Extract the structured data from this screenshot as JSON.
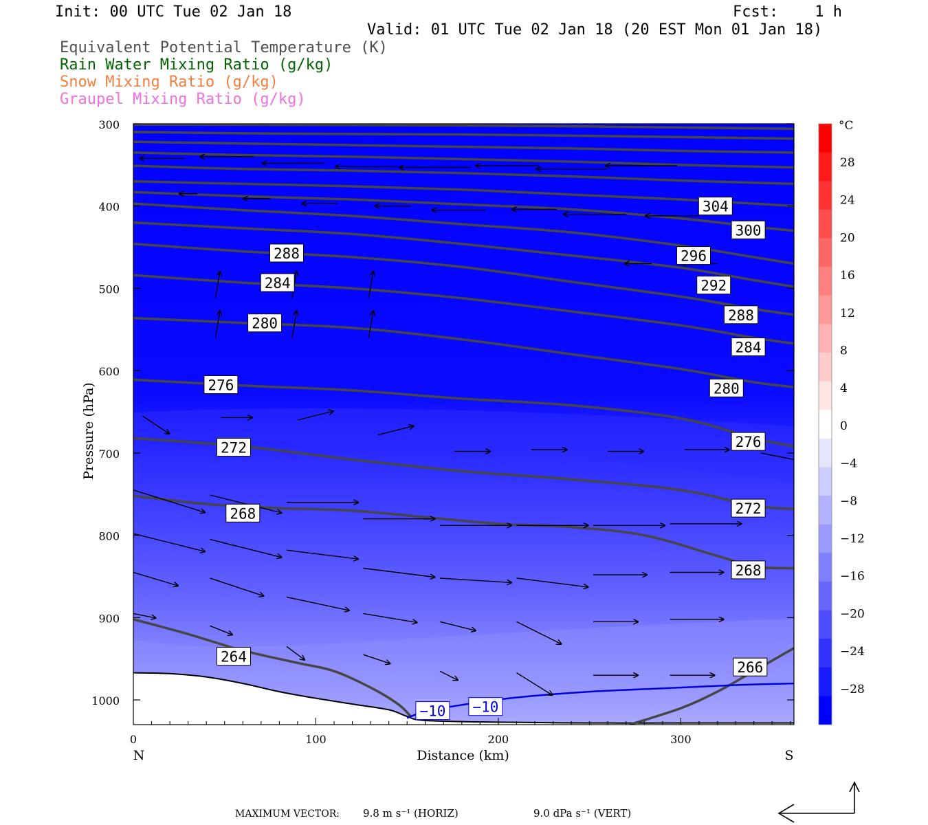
{
  "header": {
    "init": "Init: 00 UTC Tue 02 Jan 18",
    "fcst": "Fcst:    1 h",
    "valid": "Valid: 01 UTC Tue 02 Jan 18 (20 EST Mon 01 Jan 18)"
  },
  "legend": [
    {
      "label": "Equivalent Potential Temperature (K)",
      "color": "#505050"
    },
    {
      "label": "Rain Water Mixing Ratio (g/kg)",
      "color": "#006400"
    },
    {
      "label": "Snow Mixing Ratio (g/kg)",
      "color": "#f08040"
    },
    {
      "label": "Graupel Mixing Ratio (g/kg)",
      "color": "#f070e0"
    }
  ],
  "footer": {
    "max_vector_label": "MAXIMUM VECTOR:",
    "horiz": "9.8 m s⁻¹ (HORIZ)",
    "vert": "9.0 dPa s⁻¹ (VERT)"
  },
  "chart_data": {
    "type": "heatmap",
    "xlabel": "Distance (km)",
    "ylabel": "Pressure (hPa)",
    "x_ticks": [
      0,
      100,
      200,
      300
    ],
    "y_ticks": [
      300,
      400,
      500,
      600,
      700,
      800,
      900,
      1000
    ],
    "xlim": [
      0,
      362
    ],
    "ylim": [
      300,
      1030
    ],
    "x_end_labels": {
      "left": "N",
      "right": "S"
    },
    "colorbar": {
      "unit": "°C",
      "ticks": [
        28,
        24,
        20,
        16,
        12,
        8,
        4,
        0,
        -4,
        -8,
        -12,
        -16,
        -20,
        -24,
        -28
      ],
      "tick_labels": [
        "28",
        "24",
        "20",
        "16",
        "12",
        "8",
        "4",
        "0",
        "−4",
        "−8",
        "−12",
        "−16",
        "−20",
        "−24",
        "−28"
      ],
      "colors": [
        "#ff0000",
        "#ff1a1a",
        "#ff3333",
        "#ff4d4d",
        "#ff6666",
        "#ff8080",
        "#ff9999",
        "#ffb3b3",
        "#ffcccc",
        "#ffe6e6",
        "#ffffff",
        "#e6e6ff",
        "#ccccff",
        "#b3b3ff",
        "#9999ff",
        "#8080ff",
        "#6666ff",
        "#4d4dff",
        "#3333ff",
        "#1a1aff",
        "#0000ff"
      ]
    },
    "theta_e_contours": [
      {
        "value": 264,
        "label": "264",
        "points": [
          [
            0,
            902
          ],
          [
            30,
            920
          ],
          [
            60,
            940
          ],
          [
            90,
            955
          ],
          [
            110,
            965
          ],
          [
            130,
            985
          ],
          [
            145,
            1005
          ],
          [
            152,
            1020
          ]
        ]
      },
      {
        "value": 266,
        "label": "266",
        "points": [
          [
            272,
            1030
          ],
          [
            300,
            1010
          ],
          [
            320,
            990
          ],
          [
            340,
            965
          ],
          [
            362,
            937
          ]
        ]
      },
      {
        "value": 268,
        "label": "268",
        "points": [
          [
            0,
            752
          ],
          [
            40,
            762
          ],
          [
            80,
            767
          ],
          [
            120,
            770
          ],
          [
            160,
            778
          ],
          [
            200,
            786
          ],
          [
            240,
            790
          ],
          [
            280,
            800
          ],
          [
            320,
            825
          ],
          [
            340,
            838
          ],
          [
            362,
            840
          ]
        ]
      },
      {
        "value": 272,
        "label": "272",
        "points": [
          [
            0,
            682
          ],
          [
            60,
            692
          ],
          [
            120,
            708
          ],
          [
            180,
            722
          ],
          [
            240,
            732
          ],
          [
            300,
            745
          ],
          [
            340,
            764
          ],
          [
            362,
            768
          ]
        ]
      },
      {
        "value": 276,
        "label": "276",
        "points": [
          [
            0,
            611
          ],
          [
            60,
            618
          ],
          [
            120,
            624
          ],
          [
            180,
            634
          ],
          [
            240,
            642
          ],
          [
            300,
            658
          ],
          [
            340,
            682
          ],
          [
            362,
            692
          ]
        ]
      },
      {
        "value": 280,
        "label": "280",
        "points": [
          [
            0,
            536
          ],
          [
            60,
            542
          ],
          [
            120,
            548
          ],
          [
            180,
            562
          ],
          [
            240,
            580
          ],
          [
            300,
            598
          ],
          [
            340,
            614
          ],
          [
            362,
            620
          ]
        ]
      },
      {
        "value": 284,
        "label": "284",
        "points": [
          [
            0,
            484
          ],
          [
            60,
            493
          ],
          [
            120,
            500
          ],
          [
            180,
            512
          ],
          [
            240,
            528
          ],
          [
            300,
            545
          ],
          [
            340,
            560
          ],
          [
            362,
            567
          ]
        ]
      },
      {
        "value": 288,
        "label": "288",
        "points": [
          [
            0,
            446
          ],
          [
            60,
            455
          ],
          [
            120,
            462
          ],
          [
            180,
            474
          ],
          [
            240,
            492
          ],
          [
            300,
            510
          ],
          [
            340,
            525
          ],
          [
            362,
            532
          ]
        ]
      },
      {
        "value": 292,
        "label": "292",
        "points": [
          [
            0,
            420
          ],
          [
            60,
            427
          ],
          [
            120,
            434
          ],
          [
            180,
            446
          ],
          [
            240,
            460
          ],
          [
            300,
            475
          ],
          [
            340,
            490
          ],
          [
            362,
            498
          ]
        ]
      },
      {
        "value": 296,
        "label": "296",
        "points": [
          [
            0,
            397
          ],
          [
            60,
            405
          ],
          [
            120,
            412
          ],
          [
            180,
            422
          ],
          [
            240,
            432
          ],
          [
            300,
            448
          ],
          [
            340,
            462
          ],
          [
            362,
            470
          ]
        ]
      },
      {
        "value": 300,
        "label": "300",
        "points": [
          [
            0,
            383
          ],
          [
            60,
            388
          ],
          [
            120,
            392
          ],
          [
            180,
            398
          ],
          [
            240,
            404
          ],
          [
            300,
            415
          ],
          [
            340,
            425
          ],
          [
            362,
            430
          ]
        ]
      },
      {
        "value": 304,
        "label": "304",
        "points": [
          [
            0,
            370
          ],
          [
            60,
            373
          ],
          [
            120,
            376
          ],
          [
            180,
            380
          ],
          [
            240,
            386
          ],
          [
            300,
            392
          ],
          [
            340,
            397
          ],
          [
            362,
            400
          ]
        ]
      },
      {
        "value": 308,
        "label": "",
        "points": [
          [
            0,
            351
          ],
          [
            60,
            355
          ],
          [
            120,
            357
          ],
          [
            180,
            360
          ],
          [
            240,
            364
          ],
          [
            300,
            369
          ],
          [
            362,
            373
          ]
        ]
      },
      {
        "value": 312,
        "label": "",
        "points": [
          [
            0,
            335
          ],
          [
            60,
            338
          ],
          [
            120,
            340
          ],
          [
            180,
            343
          ],
          [
            240,
            346
          ],
          [
            300,
            350
          ],
          [
            362,
            353
          ]
        ]
      },
      {
        "value": 316,
        "label": "",
        "points": [
          [
            0,
            322
          ],
          [
            60,
            324
          ],
          [
            120,
            326
          ],
          [
            180,
            328
          ],
          [
            240,
            330
          ],
          [
            300,
            333
          ],
          [
            362,
            335
          ]
        ]
      },
      {
        "value": 320,
        "label": "",
        "points": [
          [
            0,
            310
          ],
          [
            80,
            312
          ],
          [
            180,
            313
          ],
          [
            260,
            315
          ],
          [
            362,
            318
          ]
        ]
      },
      {
        "value": 324,
        "label": "",
        "points": [
          [
            0,
            301
          ],
          [
            180,
            302
          ],
          [
            362,
            306
          ]
        ]
      }
    ],
    "theta_e_labels": [
      {
        "text": "264",
        "x": 55,
        "p": 947
      },
      {
        "text": "266",
        "x": 338,
        "p": 960
      },
      {
        "text": "268",
        "x": 60,
        "p": 773
      },
      {
        "text": "268",
        "x": 337,
        "p": 842
      },
      {
        "text": "272",
        "x": 55,
        "p": 693
      },
      {
        "text": "272",
        "x": 337,
        "p": 767
      },
      {
        "text": "276",
        "x": 48,
        "p": 617
      },
      {
        "text": "276",
        "x": 337,
        "p": 686
      },
      {
        "text": "280",
        "x": 72,
        "p": 542
      },
      {
        "text": "280",
        "x": 325,
        "p": 621
      },
      {
        "text": "284",
        "x": 79,
        "p": 493
      },
      {
        "text": "284",
        "x": 337,
        "p": 571
      },
      {
        "text": "288",
        "x": 84,
        "p": 457
      },
      {
        "text": "288",
        "x": 333,
        "p": 532
      },
      {
        "text": "292",
        "x": 318,
        "p": 496
      },
      {
        "text": "296",
        "x": 307,
        "p": 460
      },
      {
        "text": "300",
        "x": 337,
        "p": 429
      },
      {
        "text": "304",
        "x": 319,
        "p": 400
      }
    ],
    "temperature_contour": {
      "value": -10,
      "label": "−10",
      "color": "#0000dd",
      "points": [
        [
          150,
          1022
        ],
        [
          160,
          1014
        ],
        [
          180,
          1006
        ],
        [
          210,
          997
        ],
        [
          250,
          990
        ],
        [
          290,
          986
        ],
        [
          330,
          982
        ],
        [
          362,
          980
        ]
      ],
      "labels": [
        {
          "text": "−10",
          "x": 164,
          "p": 1013
        },
        {
          "text": "−10",
          "x": 193,
          "p": 1008
        }
      ]
    },
    "terrain": [
      [
        0,
        967
      ],
      [
        20,
        968
      ],
      [
        40,
        972
      ],
      [
        60,
        980
      ],
      [
        80,
        990
      ],
      [
        100,
        998
      ],
      [
        120,
        1005
      ],
      [
        140,
        1012
      ],
      [
        150,
        1020
      ],
      [
        160,
        1025
      ],
      [
        200,
        1027
      ],
      [
        250,
        1028
      ],
      [
        300,
        1028
      ],
      [
        362,
        1028
      ]
    ],
    "wind_vectors": [
      {
        "x": 28,
        "p": 342,
        "u": -5,
        "w": 0
      },
      {
        "x": 66,
        "p": 340,
        "u": -6,
        "w": 0
      },
      {
        "x": 105,
        "p": 348,
        "u": -7,
        "w": 0
      },
      {
        "x": 145,
        "p": 352,
        "u": -7,
        "w": 0
      },
      {
        "x": 185,
        "p": 353,
        "u": -8,
        "w": 0
      },
      {
        "x": 222,
        "p": 351,
        "u": -7,
        "w": 0
      },
      {
        "x": 260,
        "p": 355,
        "u": -8,
        "w": 0
      },
      {
        "x": 298,
        "p": 351,
        "u": -8,
        "w": 0
      },
      {
        "x": 35,
        "p": 385,
        "u": -2,
        "w": 0
      },
      {
        "x": 75,
        "p": 391,
        "u": -3,
        "w": 0
      },
      {
        "x": 112,
        "p": 397,
        "u": -4,
        "w": 0
      },
      {
        "x": 152,
        "p": 400,
        "u": -4,
        "w": 0
      },
      {
        "x": 193,
        "p": 405,
        "u": -6,
        "w": 0
      },
      {
        "x": 232,
        "p": 404,
        "u": -5,
        "w": 0
      },
      {
        "x": 270,
        "p": 410,
        "u": -7,
        "w": 0
      },
      {
        "x": 310,
        "p": 412,
        "u": -6,
        "w": 0
      },
      {
        "x": 284,
        "p": 470,
        "u": -3,
        "w": 0
      },
      {
        "x": 320,
        "p": 470,
        "u": -4,
        "w": 0
      },
      {
        "x": 45,
        "p": 560,
        "u": 0.5,
        "w": 3
      },
      {
        "x": 87,
        "p": 560,
        "u": 0.5,
        "w": 3
      },
      {
        "x": 129,
        "p": 560,
        "u": 0.5,
        "w": 3
      },
      {
        "x": 45,
        "p": 512,
        "u": 0.5,
        "w": 3
      },
      {
        "x": 87,
        "p": 512,
        "u": 0.5,
        "w": 3
      },
      {
        "x": 129,
        "p": 512,
        "u": 0.5,
        "w": 3
      },
      {
        "x": 5,
        "p": 655,
        "u": 3,
        "w": -2
      },
      {
        "x": 48,
        "p": 657,
        "u": 3.5,
        "w": 0
      },
      {
        "x": 90,
        "p": 660,
        "u": 4,
        "w": 1
      },
      {
        "x": 134,
        "p": 678,
        "u": 4,
        "w": 1
      },
      {
        "x": 176,
        "p": 698,
        "u": 4,
        "w": 0
      },
      {
        "x": 218,
        "p": 696,
        "u": 4,
        "w": 0
      },
      {
        "x": 260,
        "p": 698,
        "u": 4,
        "w": 0
      },
      {
        "x": 302,
        "p": 696,
        "u": 5,
        "w": 0
      },
      {
        "x": 344,
        "p": 700,
        "u": 5,
        "w": -1
      },
      {
        "x": 0,
        "p": 745,
        "u": 8,
        "w": -2.5
      },
      {
        "x": 42,
        "p": 751,
        "u": 8,
        "w": -2
      },
      {
        "x": 84,
        "p": 760,
        "u": 8,
        "w": 0
      },
      {
        "x": 126,
        "p": 780,
        "u": 8,
        "w": 0
      },
      {
        "x": 168,
        "p": 788,
        "u": 8,
        "w": 0
      },
      {
        "x": 210,
        "p": 788,
        "u": 8,
        "w": 0
      },
      {
        "x": 252,
        "p": 788,
        "u": 8,
        "w": 0
      },
      {
        "x": 294,
        "p": 786,
        "u": 8,
        "w": 0
      },
      {
        "x": 0,
        "p": 798,
        "u": 8,
        "w": -2
      },
      {
        "x": 42,
        "p": 805,
        "u": 8,
        "w": -2
      },
      {
        "x": 84,
        "p": 818,
        "u": 8,
        "w": -1
      },
      {
        "x": 126,
        "p": 840,
        "u": 8,
        "w": -1
      },
      {
        "x": 168,
        "p": 852,
        "u": 8,
        "w": -0.5
      },
      {
        "x": 210,
        "p": 852,
        "u": 8,
        "w": -1
      },
      {
        "x": 252,
        "p": 848,
        "u": 6,
        "w": 0
      },
      {
        "x": 294,
        "p": 845,
        "u": 6,
        "w": 0
      },
      {
        "x": 0,
        "p": 845,
        "u": 5,
        "w": -1.5
      },
      {
        "x": 42,
        "p": 852,
        "u": 6,
        "w": -2
      },
      {
        "x": 84,
        "p": 875,
        "u": 7,
        "w": -1.5
      },
      {
        "x": 126,
        "p": 895,
        "u": 6,
        "w": -1
      },
      {
        "x": 168,
        "p": 905,
        "u": 4,
        "w": -1
      },
      {
        "x": 210,
        "p": 905,
        "u": 5,
        "w": -2.5
      },
      {
        "x": 252,
        "p": 905,
        "u": 5,
        "w": 0
      },
      {
        "x": 294,
        "p": 902,
        "u": 6,
        "w": 0
      },
      {
        "x": 0,
        "p": 895,
        "u": 2.5,
        "w": -0.5
      },
      {
        "x": 42,
        "p": 910,
        "u": 2.5,
        "w": -1
      },
      {
        "x": 84,
        "p": 935,
        "u": 2,
        "w": -1.5
      },
      {
        "x": 126,
        "p": 945,
        "u": 3,
        "w": -1
      },
      {
        "x": 168,
        "p": 965,
        "u": 2,
        "w": -1
      },
      {
        "x": 210,
        "p": 967,
        "u": 4,
        "w": -2.5
      },
      {
        "x": 252,
        "p": 970,
        "u": 5,
        "w": 0
      },
      {
        "x": 294,
        "p": 970,
        "u": 5,
        "w": 0
      }
    ]
  }
}
